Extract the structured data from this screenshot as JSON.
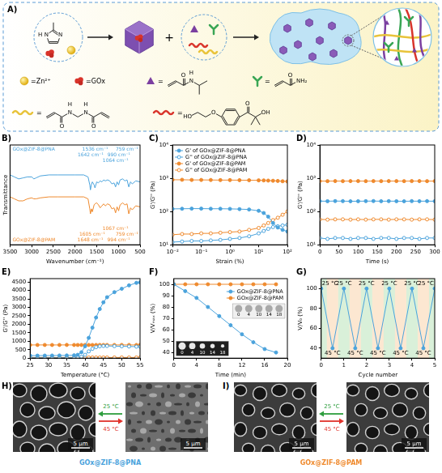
{
  "chart_data": [
    {
      "panel": "B)",
      "type": "line",
      "xlabel": "Wavenumber (cm⁻¹)",
      "ylabel": "Transmittance",
      "x": [
        3500,
        3400,
        3300,
        3200,
        3100,
        3000,
        2950,
        2900,
        2800,
        2600,
        2400,
        2200,
        2000,
        1800,
        1700,
        1660,
        1645,
        1620,
        1600,
        1560,
        1540,
        1500,
        1460,
        1420,
        1380,
        1340,
        1300,
        1250,
        1200,
        1150,
        1100,
        1065,
        1030,
        995,
        960,
        900,
        850,
        800,
        760,
        720,
        680,
        600,
        500
      ],
      "xlim": [
        3500,
        500
      ],
      "xticks": [
        3500,
        3000,
        2500,
        2000,
        1500,
        1000,
        500
      ],
      "ylim": [
        0,
        100
      ],
      "tick_labels": "x",
      "grid": false,
      "series": [
        {
          "name": "GOx@ZIF-8@PNA",
          "color": "#4ba3dc",
          "marker": "none",
          "line_style": "solid",
          "values": [
            70,
            68,
            66,
            67,
            68,
            68,
            66,
            67,
            69,
            70,
            70,
            70,
            70,
            70,
            68,
            60,
            55,
            61,
            63,
            60,
            57,
            63,
            62,
            64,
            63,
            65,
            64,
            65,
            64,
            61,
            62,
            58,
            63,
            60,
            65,
            66,
            64,
            65,
            58,
            63,
            61,
            64,
            63
          ],
          "annotations": [
            {
              "x": 759,
              "text": "759 cm⁻¹"
            },
            {
              "x": 1536,
              "text": "1536 cm⁻¹"
            },
            {
              "x": 1642,
              "text": "1642 cm⁻¹"
            },
            {
              "x": 990,
              "text": "990 cm⁻¹"
            },
            {
              "x": 1064,
              "text": "1064 cm⁻¹"
            }
          ]
        },
        {
          "name": "GOx@ZIF-8@PAM",
          "color": "#ef8a2e",
          "marker": "none",
          "line_style": "solid",
          "values": [
            48,
            46,
            44,
            44,
            46,
            47,
            46,
            46,
            47,
            48,
            48,
            48,
            48,
            48,
            46,
            36,
            31,
            36,
            33,
            40,
            41,
            42,
            40,
            37,
            39,
            41,
            39,
            41,
            40,
            36,
            37,
            32,
            38,
            34,
            40,
            42,
            40,
            41,
            31,
            37,
            35,
            39,
            38
          ],
          "annotations": [
            {
              "x": 1648,
              "text": "1648 cm⁻¹"
            },
            {
              "x": 1605,
              "text": "1605 cm⁻¹"
            },
            {
              "x": 994,
              "text": "994 cm⁻¹"
            },
            {
              "x": 1067,
              "text": "1067 cm⁻¹"
            },
            {
              "x": 759,
              "text": "759 cm⁻¹"
            }
          ]
        }
      ]
    },
    {
      "panel": "C)",
      "type": "line",
      "log": true,
      "xlabel": "Strain (%)",
      "ylabel": "G'/G'' (Pa)",
      "x": [
        0.01,
        0.0215,
        0.0464,
        0.1,
        0.215,
        0.464,
        1,
        2.15,
        4.64,
        10,
        15,
        21.5,
        31.6,
        46.4,
        68.1,
        100
      ],
      "xlim": [
        0.01,
        100
      ],
      "xticks": [
        {
          "value": 0.01,
          "label": "10⁻²"
        },
        {
          "value": 0.1,
          "label": "10⁻¹"
        },
        {
          "value": 1,
          "label": "10⁰"
        },
        {
          "value": 10,
          "label": "10¹"
        },
        {
          "value": 100,
          "label": "10²"
        }
      ],
      "ylim": [
        10,
        10000
      ],
      "yticks": [
        {
          "value": 10,
          "label": "10¹"
        },
        {
          "value": 100,
          "label": "10²"
        },
        {
          "value": 1000,
          "label": "10³"
        },
        {
          "value": 10000,
          "label": "10⁴"
        }
      ],
      "grid": false,
      "legend": "upper left",
      "series": [
        {
          "name": "G' of GOx@ZIF-8@PNA",
          "color": "#4ba3dc",
          "marker": "circle",
          "line_style": "solid",
          "values": [
            120,
            121,
            122,
            122,
            121,
            121,
            120,
            118,
            115,
            105,
            90,
            70,
            45,
            33,
            28,
            25
          ]
        },
        {
          "name": "G'' of GOx@ZIF-8@PNA",
          "color": "#4ba3dc",
          "marker": "open_circle",
          "line_style": "solid",
          "values": [
            12,
            12.5,
            13,
            13,
            13.5,
            14,
            15,
            16,
            18,
            22,
            26,
            30,
            34,
            36,
            38,
            40
          ]
        },
        {
          "name": "G' of GOx@ZIF-8@PAM",
          "color": "#ef8a2e",
          "marker": "circle",
          "line_style": "solid",
          "values": [
            900,
            900,
            890,
            890,
            885,
            880,
            880,
            875,
            870,
            865,
            860,
            850,
            840,
            830,
            810,
            800
          ]
        },
        {
          "name": "G'' of GOx@ZIF-8@PAM",
          "color": "#ef8a2e",
          "marker": "open_circle",
          "line_style": "solid",
          "values": [
            20,
            21,
            21,
            22,
            22,
            23,
            24,
            25,
            28,
            32,
            38,
            45,
            55,
            65,
            80,
            100
          ]
        }
      ]
    },
    {
      "panel": "D)",
      "type": "line",
      "log": "y",
      "xlabel": "Time (s)",
      "ylabel": "G'/G'' (Pa)",
      "x": [
        0,
        20,
        40,
        60,
        80,
        100,
        120,
        140,
        160,
        180,
        200,
        220,
        240,
        260,
        280,
        300
      ],
      "xlim": [
        0,
        300
      ],
      "xticks": [
        0,
        50,
        100,
        150,
        200,
        250,
        300
      ],
      "ylim": [
        10,
        10000
      ],
      "yticks": [
        {
          "value": 10,
          "label": "10¹"
        },
        {
          "value": 100,
          "label": "10²"
        },
        {
          "value": 1000,
          "label": "10³"
        },
        {
          "value": 10000,
          "label": "10⁴"
        }
      ],
      "grid": false,
      "series": [
        {
          "color": "#4ba3dc",
          "marker": "circle",
          "line_style": "solid",
          "values": [
            205,
            204,
            206,
            205,
            203,
            204,
            205,
            206,
            204,
            205,
            204,
            203,
            205,
            204,
            205,
            204
          ]
        },
        {
          "color": "#4ba3dc",
          "marker": "open_circle",
          "line_style": "solid",
          "values": [
            16,
            15,
            16,
            16,
            15,
            16,
            16,
            15,
            16,
            16,
            15,
            16,
            16,
            15,
            16,
            16
          ]
        },
        {
          "color": "#ef8a2e",
          "marker": "circle",
          "line_style": "solid",
          "values": [
            820,
            818,
            821,
            819,
            820,
            822,
            818,
            820,
            819,
            821,
            820,
            818,
            820,
            821,
            819,
            820
          ]
        },
        {
          "color": "#ef8a2e",
          "marker": "open_circle",
          "line_style": "solid",
          "values": [
            58,
            57,
            58,
            58,
            57,
            58,
            57,
            58,
            58,
            57,
            58,
            58,
            57,
            58,
            58,
            57
          ]
        }
      ]
    },
    {
      "panel": "E)",
      "type": "line",
      "xlabel": "Temperature (°C)",
      "ylabel": "G'/G'' (Pa)",
      "x": [
        25,
        27,
        29,
        31,
        33,
        35,
        37,
        38,
        39,
        40,
        41,
        42,
        43,
        44,
        45,
        46,
        48,
        50,
        52,
        54,
        55
      ],
      "xlim": [
        25,
        55
      ],
      "xticks": [
        25,
        30,
        35,
        40,
        45,
        50,
        55
      ],
      "ylim": [
        0,
        4700
      ],
      "yticks": [
        0,
        500,
        1000,
        1500,
        2000,
        2500,
        3000,
        3500,
        4000,
        4500
      ],
      "grid": false,
      "series": [
        {
          "color": "#4ba3dc",
          "marker": "circle",
          "line_style": "solid",
          "values": [
            150,
            150,
            152,
            155,
            158,
            160,
            170,
            200,
            350,
            700,
            1200,
            1800,
            2400,
            2900,
            3300,
            3600,
            3900,
            4100,
            4300,
            4450,
            4480
          ]
        },
        {
          "color": "#4ba3dc",
          "marker": "open_circle",
          "line_style": "solid",
          "values": [
            15,
            15,
            15,
            16,
            16,
            18,
            25,
            40,
            80,
            200,
            400,
            550,
            650,
            700,
            720,
            720,
            710,
            700,
            690,
            680,
            680
          ]
        },
        {
          "color": "#ef8a2e",
          "marker": "circle",
          "line_style": "solid",
          "values": [
            780,
            780,
            781,
            779,
            780,
            782,
            780,
            779,
            781,
            780,
            780,
            779,
            780,
            781,
            780,
            779,
            780,
            781,
            780,
            779,
            780
          ]
        },
        {
          "color": "#ef8a2e",
          "marker": "open_circle",
          "line_style": "solid",
          "values": [
            40,
            40,
            41,
            40,
            40,
            41,
            40,
            40,
            41,
            40,
            40,
            41,
            40,
            40,
            41,
            40,
            40,
            41,
            40,
            40,
            41
          ]
        }
      ]
    },
    {
      "panel": "F)",
      "type": "line",
      "xlabel": "Time (min)",
      "ylabel": "V/Vₘₐₓ (%)",
      "x": [
        0,
        2,
        4,
        6,
        8,
        10,
        12,
        14,
        16,
        18
      ],
      "xlim": [
        0,
        20
      ],
      "xticks": [
        0,
        4,
        8,
        12,
        16,
        20
      ],
      "ylim": [
        35,
        105
      ],
      "yticks": [
        40,
        50,
        60,
        70,
        80,
        90,
        100
      ],
      "grid": false,
      "legend": "upper right",
      "series": [
        {
          "name": "GOx@ZIF-8@PNA",
          "color": "#4ba3dc",
          "marker": "circle",
          "line_style": "solid",
          "values": [
            100,
            94,
            88,
            80,
            72,
            64,
            56,
            49,
            43,
            40
          ]
        },
        {
          "name": "GOx@ZIF-8@PAM",
          "color": "#ef8a2e",
          "marker": "circle",
          "line_style": "solid",
          "values": [
            100,
            100,
            100,
            100,
            100,
            100,
            100,
            100,
            100,
            100
          ]
        }
      ],
      "insets": [
        {
          "labels": [
            "0",
            "4",
            "10",
            "14",
            "18"
          ]
        },
        {
          "labels": [
            "0",
            "4",
            "10",
            "14",
            "18"
          ]
        }
      ]
    },
    {
      "panel": "G)",
      "type": "line",
      "xlabel": "Cycle number",
      "ylabel": "V/V₀ (%)",
      "x": [
        0,
        0.5,
        1,
        1.5,
        2,
        2.5,
        3,
        3.5,
        4,
        4.5,
        5
      ],
      "xlim": [
        0,
        5
      ],
      "xticks": [
        0,
        1,
        2,
        3,
        4,
        5
      ],
      "ylim": [
        30,
        110
      ],
      "yticks": [
        40,
        60,
        80,
        100
      ],
      "grid": false,
      "series": [
        {
          "color": "#4ba3dc",
          "marker": "circle",
          "line_style": "solid",
          "values": [
            100,
            40,
            100,
            40,
            100,
            40,
            100,
            40,
            100,
            40,
            100
          ]
        }
      ],
      "annotations": [
        {
          "x": 0,
          "text": "25 °C"
        },
        {
          "x": 0.5,
          "text": "45 °C"
        },
        {
          "x": 1,
          "text": "25 °C"
        },
        {
          "x": 1.5,
          "text": "45 °C"
        },
        {
          "x": 2,
          "text": "25 °C"
        },
        {
          "x": 2.5,
          "text": "45 °C"
        },
        {
          "x": 3,
          "text": "25 °C"
        },
        {
          "x": 3.5,
          "text": "45 °C"
        },
        {
          "x": 4,
          "text": "25 °C"
        },
        {
          "x": 4.5,
          "text": "45 °C"
        },
        {
          "x": 5,
          "text": "25 °C"
        }
      ]
    }
  ],
  "schematic": {
    "panel": "A)",
    "operator": "+",
    "precursor_atoms": [
      "N",
      "N",
      "H"
    ],
    "legend": [
      {
        "text": "=Zn²⁺"
      },
      {
        "text": "=GOx"
      },
      {
        "text": "=",
        "atoms": [
          "O",
          "N",
          "H"
        ]
      },
      {
        "text": "=",
        "atoms": [
          "O",
          "NH₂"
        ]
      },
      {
        "text": "=",
        "atoms": [
          "O",
          "N",
          "H",
          "N",
          "H",
          "O"
        ]
      },
      {
        "text": "=",
        "atoms": [
          "HO",
          "O",
          "O",
          "OH"
        ]
      }
    ]
  },
  "micrographs": [
    {
      "panel": "H)",
      "caption": "GOx@ZIF-8@PNA",
      "color": "#4ba3dc",
      "scale_bar": "5 μm",
      "arrows": [
        {
          "text": "25 °C",
          "color": "#2e9e3e"
        },
        {
          "text": "45 °C",
          "color": "#e0322b"
        }
      ]
    },
    {
      "panel": "I)",
      "caption": "GOx@ZIF-8@PAM",
      "color": "#ef8a2e",
      "scale_bar": "5 μm",
      "arrows": [
        {
          "text": "25 °C",
          "color": "#2e9e3e"
        },
        {
          "text": "45 °C",
          "color": "#e0322b"
        }
      ]
    }
  ]
}
